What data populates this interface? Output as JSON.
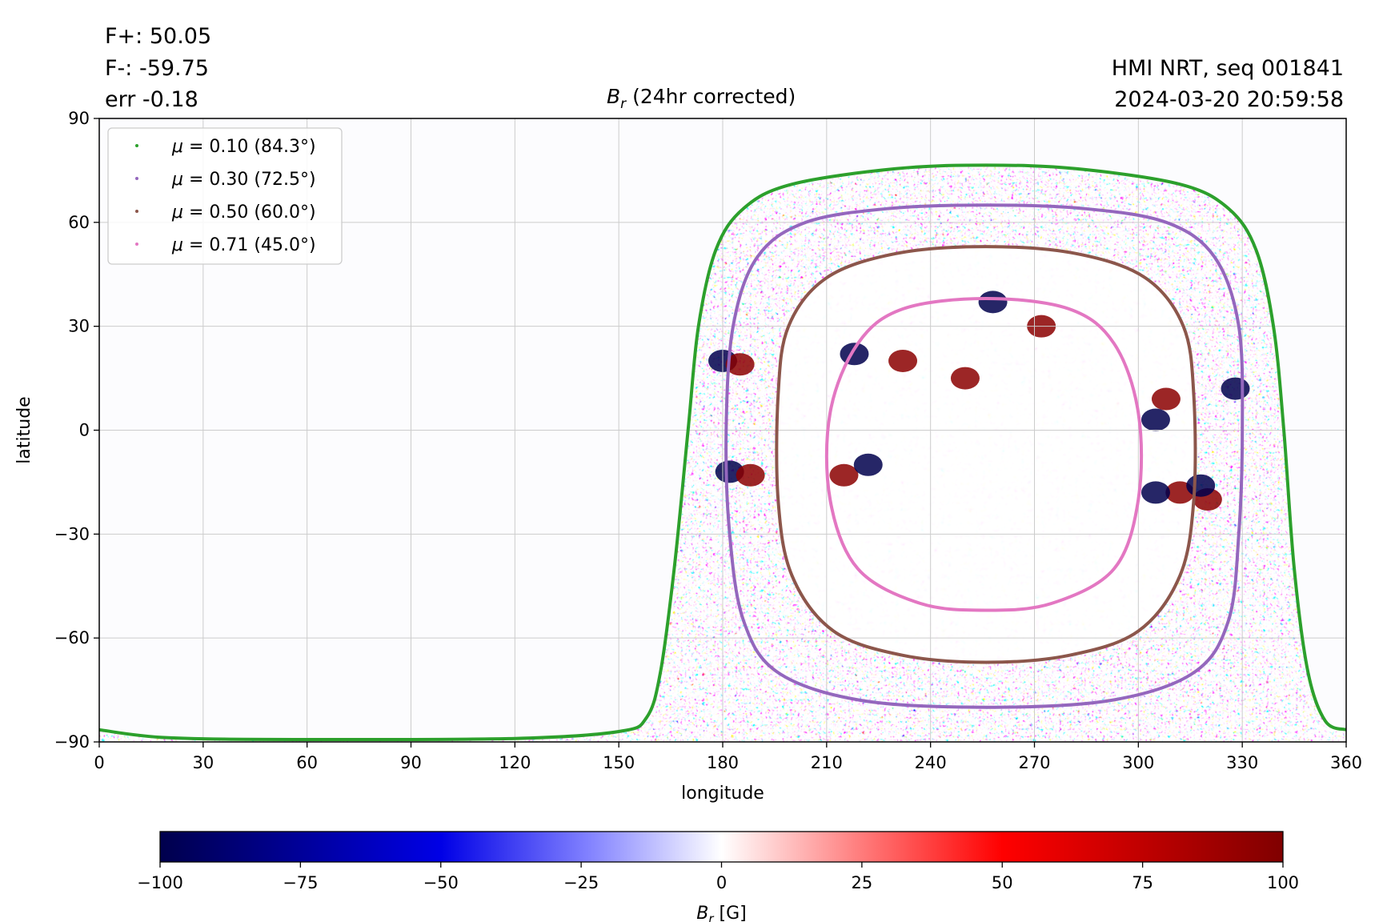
{
  "header": {
    "flux_pos": "F+: 50.05",
    "flux_neg": "F-: -59.75",
    "err": "err -0.18",
    "instrument": "HMI NRT, seq 001841",
    "datetime": "2024-03-20 20:59:58"
  },
  "colors": {
    "mu_010": "#2ca02c",
    "mu_030": "#9467bd",
    "mu_050": "#8c564b",
    "mu_071": "#e377c2",
    "grid": "#cccccc",
    "cmap_low": "#00004c",
    "cmap_mid": "#ffffff",
    "cmap_high": "#800000"
  },
  "chart_data": [
    {
      "type": "heatmap",
      "title_symbol": "B",
      "title_sub": "r",
      "title_rest": " (24hr corrected)",
      "xlabel": "longitude",
      "ylabel": "latitude",
      "xlim": [
        0,
        360
      ],
      "ylim": [
        -90,
        90
      ],
      "xticks": [
        0,
        30,
        60,
        90,
        120,
        150,
        180,
        210,
        240,
        270,
        300,
        330,
        360
      ],
      "yticks": [
        -90,
        -60,
        -30,
        0,
        30,
        60,
        90
      ],
      "xtick_labels": [
        "0",
        "30",
        "60",
        "90",
        "120",
        "150",
        "180",
        "210",
        "240",
        "270",
        "300",
        "330",
        "360"
      ],
      "ytick_labels": [
        "−90",
        "−60",
        "−30",
        "0",
        "30",
        "60",
        "90"
      ],
      "grid": true,
      "legend_position": "top-left",
      "legend": [
        {
          "mu": "0.10",
          "angle": "84.3",
          "color": "#2ca02c"
        },
        {
          "mu": "0.30",
          "angle": "72.5",
          "color": "#9467bd"
        },
        {
          "mu": "0.50",
          "angle": "60.0",
          "color": "#8c564b"
        },
        {
          "mu": "0.71",
          "angle": "45.0",
          "color": "#e377c2"
        }
      ],
      "disk_center": {
        "lon": 256,
        "lat": -7
      },
      "contours": [
        {
          "name": "mu=0.71",
          "color": "#e377c2",
          "points": [
            [
              256,
              38
            ],
            [
              280,
              35
            ],
            [
              293,
              25
            ],
            [
              300,
              5
            ],
            [
              300,
              -20
            ],
            [
              293,
              -40
            ],
            [
              275,
              -50
            ],
            [
              256,
              -52
            ],
            [
              237,
              -50
            ],
            [
              219,
              -40
            ],
            [
              211,
              -20
            ],
            [
              211,
              5
            ],
            [
              219,
              25
            ],
            [
              232,
              35
            ]
          ]
        },
        {
          "name": "mu=0.50",
          "color": "#8c564b",
          "points": [
            [
              256,
              53
            ],
            [
              282,
              51
            ],
            [
              302,
              44
            ],
            [
              313,
              30
            ],
            [
              316,
              10
            ],
            [
              316,
              -20
            ],
            [
              312,
              -42
            ],
            [
              300,
              -58
            ],
            [
              280,
              -65
            ],
            [
              256,
              -67
            ],
            [
              232,
              -65
            ],
            [
              212,
              -58
            ],
            [
              200,
              -42
            ],
            [
              196,
              -20
            ],
            [
              196,
              10
            ],
            [
              199,
              30
            ],
            [
              210,
              44
            ],
            [
              230,
              51
            ]
          ]
        },
        {
          "name": "mu=0.30",
          "color": "#9467bd",
          "points": [
            [
              256,
              65
            ],
            [
              284,
              64
            ],
            [
              308,
              60
            ],
            [
              322,
              50
            ],
            [
              329,
              30
            ],
            [
              330,
              0
            ],
            [
              329,
              -30
            ],
            [
              326,
              -55
            ],
            [
              316,
              -70
            ],
            [
              292,
              -78
            ],
            [
              256,
              -80
            ],
            [
              220,
              -78
            ],
            [
              196,
              -70
            ],
            [
              186,
              -55
            ],
            [
              182,
              -30
            ],
            [
              181,
              0
            ],
            [
              183,
              30
            ],
            [
              190,
              50
            ],
            [
              204,
              60
            ],
            [
              228,
              64
            ]
          ]
        },
        {
          "name": "mu=0.10",
          "color": "#2ca02c",
          "points": [
            [
              0,
              -86.5
            ],
            [
              20,
              -88.8
            ],
            [
              60,
              -89.3
            ],
            [
              120,
              -89
            ],
            [
              150,
              -87
            ],
            [
              158,
              -83
            ],
            [
              162,
              -70
            ],
            [
              166,
              -40
            ],
            [
              170,
              0
            ],
            [
              173,
              30
            ],
            [
              178,
              52
            ],
            [
              186,
              64
            ],
            [
              200,
              71
            ],
            [
              230,
              75.5
            ],
            [
              256,
              76.5
            ],
            [
              282,
              75.5
            ],
            [
              312,
              71
            ],
            [
              326,
              64
            ],
            [
              334,
              52
            ],
            [
              339,
              30
            ],
            [
              342,
              0
            ],
            [
              345,
              -40
            ],
            [
              349,
              -70
            ],
            [
              354,
              -84
            ],
            [
              360,
              -86.5
            ]
          ]
        }
      ],
      "active_regions": [
        {
          "lon": 180,
          "lat": 20,
          "sign": "neg"
        },
        {
          "lon": 185,
          "lat": 19,
          "sign": "pos"
        },
        {
          "lon": 218,
          "lat": 22,
          "sign": "neg"
        },
        {
          "lon": 232,
          "lat": 20,
          "sign": "pos"
        },
        {
          "lon": 182,
          "lat": -12,
          "sign": "neg"
        },
        {
          "lon": 188,
          "lat": -13,
          "sign": "pos"
        },
        {
          "lon": 215,
          "lat": -13,
          "sign": "pos"
        },
        {
          "lon": 222,
          "lat": -10,
          "sign": "neg"
        },
        {
          "lon": 308,
          "lat": 9,
          "sign": "pos"
        },
        {
          "lon": 312,
          "lat": -18,
          "sign": "pos"
        },
        {
          "lon": 320,
          "lat": -20,
          "sign": "pos"
        },
        {
          "lon": 305,
          "lat": -18,
          "sign": "neg"
        },
        {
          "lon": 318,
          "lat": -16,
          "sign": "neg"
        },
        {
          "lon": 258,
          "lat": 37,
          "sign": "neg"
        },
        {
          "lon": 272,
          "lat": 30,
          "sign": "pos"
        },
        {
          "lon": 250,
          "lat": 15,
          "sign": "pos"
        },
        {
          "lon": 305,
          "lat": 3,
          "sign": "neg"
        },
        {
          "lon": 328,
          "lat": 12,
          "sign": "neg"
        }
      ]
    },
    {
      "type": "heatmap",
      "role": "colorbar",
      "label_symbol": "B",
      "label_sub": "r",
      "label_unit": " [G]",
      "range": [
        -100,
        100
      ],
      "ticks": [
        -100,
        -75,
        -50,
        -25,
        0,
        25,
        50,
        75,
        100
      ],
      "tick_labels": [
        "−100",
        "−75",
        "−50",
        "−25",
        "0",
        "25",
        "50",
        "75",
        "100"
      ],
      "colormap": "seismic"
    }
  ]
}
